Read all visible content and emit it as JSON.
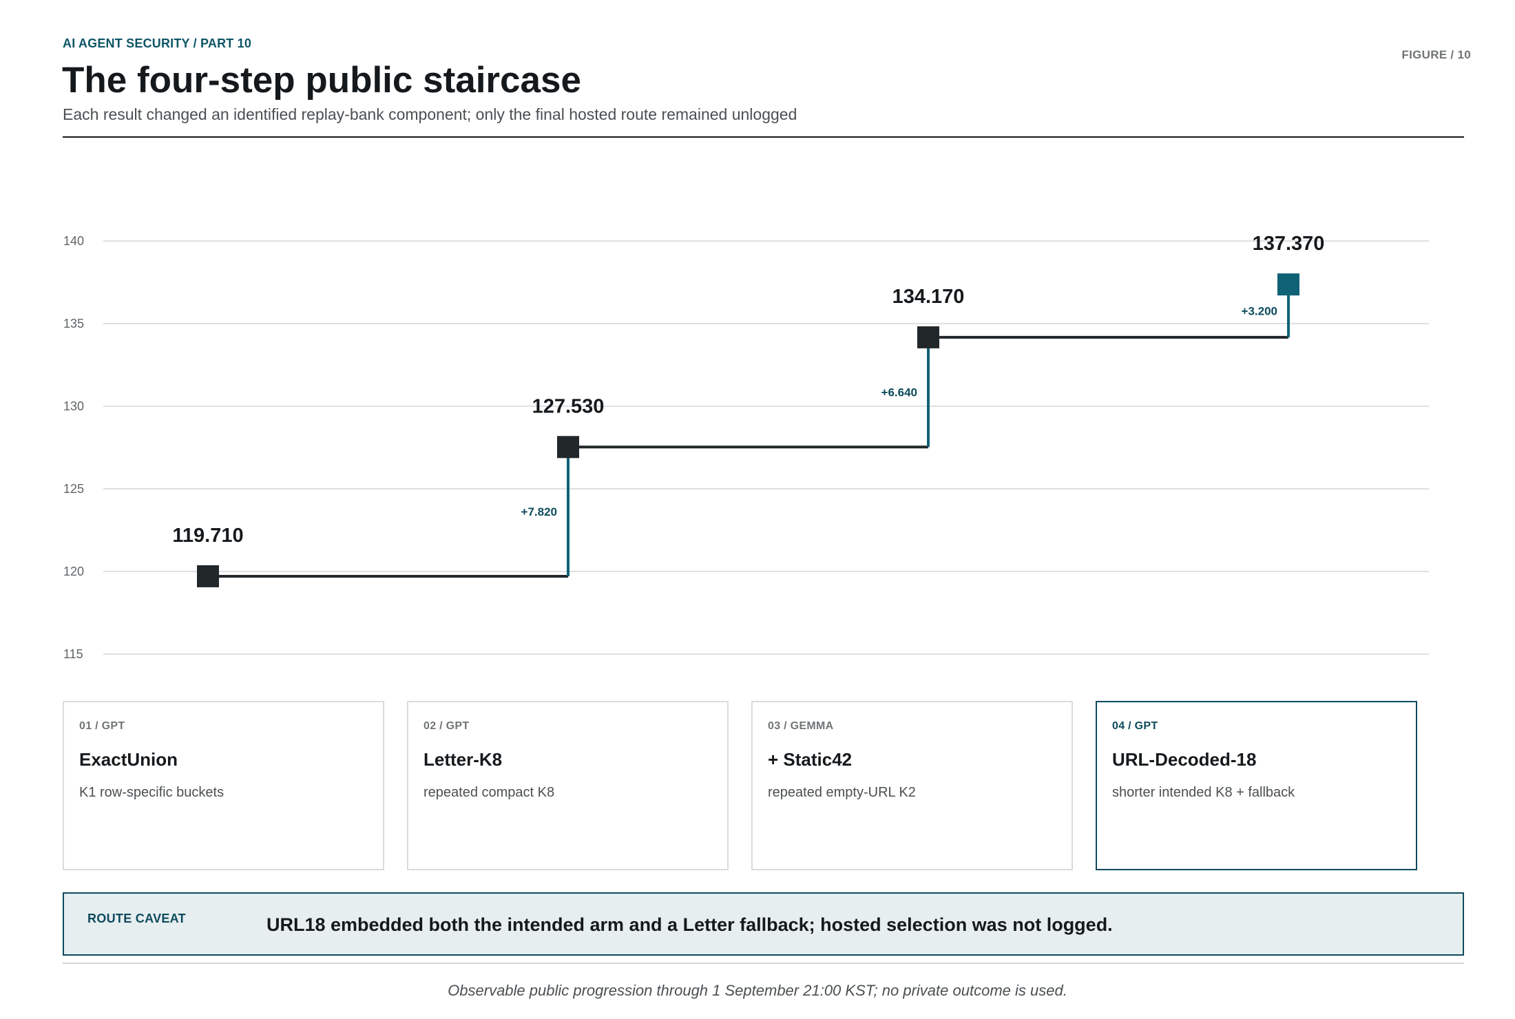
{
  "header": {
    "kicker": "AI AGENT SECURITY  /  PART 10",
    "figure_label": "FIGURE  /  10",
    "title": "The four-step public staircase",
    "subtitle": "Each result changed an identified replay-bank component; only the final hosted route remained unlogged"
  },
  "colors": {
    "ink": "#22272a",
    "accent": "#0f6275",
    "accent_text": "#0d4a5c",
    "grid": "#d2d5d7",
    "tick": "#5f6467"
  },
  "chart_data": {
    "type": "line",
    "step": true,
    "categories": [
      "01",
      "02",
      "03",
      "04"
    ],
    "values": [
      119.71,
      127.53,
      134.17,
      137.37
    ],
    "value_labels": [
      "119.710",
      "127.530",
      "134.170",
      "137.370"
    ],
    "delta_labels": [
      "+7.820",
      "+6.640",
      "+3.200"
    ],
    "yticks": [
      140,
      135,
      130,
      125,
      120,
      115
    ],
    "ylim": [
      115,
      140
    ],
    "grid": true,
    "highlight_last": true
  },
  "cards": [
    {
      "tag": "01  /  GPT",
      "title": "ExactUnion",
      "desc": "K1 row-specific buckets"
    },
    {
      "tag": "02  /  GPT",
      "title": "Letter-K8",
      "desc": "repeated compact K8"
    },
    {
      "tag": "03  /  GEMMA",
      "title": "+ Static42",
      "desc": "repeated empty-URL K2"
    },
    {
      "tag": "04  /  GPT",
      "title": "URL-Decoded-18",
      "desc": "shorter intended K8 + fallback"
    }
  ],
  "caveat": {
    "label": "ROUTE CAVEAT",
    "text": "URL18 embedded both the intended arm and a Letter fallback; hosted selection was not logged."
  },
  "footnote": "Observable public progression through 1 September 21:00 KST; no private outcome is used."
}
